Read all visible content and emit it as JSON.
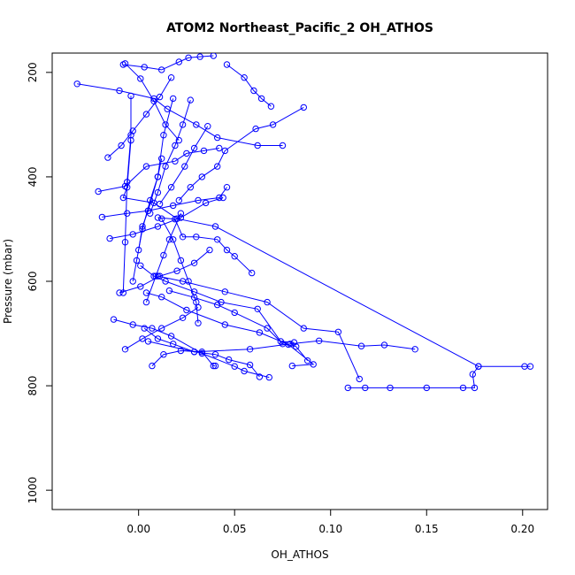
{
  "chart_data": {
    "type": "line",
    "title": "ATOM2 Northeast_Pacific_2 OH_ATHOS",
    "xlabel": "OH_ATHOS",
    "ylabel": "Pressure (mbar)",
    "xlim": [
      -0.045,
      0.213
    ],
    "ylim": [
      1037,
      163
    ],
    "y_reversed": true,
    "x_ticks": [
      0.0,
      0.05,
      0.1,
      0.15,
      0.2
    ],
    "x_tick_labels": [
      "0.00",
      "0.05",
      "0.10",
      "0.15",
      "0.20"
    ],
    "y_ticks": [
      200,
      400,
      600,
      800,
      1000
    ],
    "y_tick_labels": [
      "200",
      "400",
      "600",
      "800",
      "1000"
    ],
    "grid": false,
    "legend": "none",
    "marker": "open-circle",
    "color": "#0000ff",
    "series": [
      {
        "x": [
          0.109,
          0.118,
          0.131,
          0.15,
          0.169,
          0.175,
          0.174,
          0.177,
          0.201,
          0.204
        ],
        "y": [
          804,
          804,
          804,
          804,
          804,
          804,
          778,
          763,
          763,
          763
        ]
      },
      {
        "x": [
          0.144,
          0.128,
          0.116,
          0.094,
          0.079,
          0.058,
          0.029,
          0.005
        ],
        "y": [
          730,
          722,
          724,
          714,
          720,
          730,
          735,
          715
        ]
      },
      {
        "x": [
          0.177,
          0.04,
          0.02,
          0.008,
          -0.008,
          -0.006,
          -0.004
        ],
        "y": [
          763,
          495,
          480,
          450,
          440,
          420,
          330
        ]
      },
      {
        "x": [
          0.115,
          0.104,
          0.086,
          0.067,
          0.045,
          0.023,
          0.01
        ],
        "y": [
          787,
          697,
          690,
          640,
          620,
          600,
          590
        ]
      },
      {
        "x": [
          0.063,
          0.058,
          0.047,
          0.04,
          0.029,
          0.018,
          0.01,
          0.003
        ],
        "y": [
          783,
          760,
          750,
          740,
          735,
          720,
          710,
          690
        ]
      },
      {
        "x": [
          0.08,
          0.091,
          0.078,
          0.063,
          0.045,
          0.025,
          0.012,
          0.004
        ],
        "y": [
          762,
          759,
          721,
          698,
          683,
          655,
          630,
          622
        ]
      },
      {
        "x": [
          0.068,
          0.055,
          0.05,
          0.033,
          0.017,
          0.007,
          -0.003,
          -0.013
        ],
        "y": [
          784,
          772,
          763,
          738,
          705,
          690,
          683,
          673
        ]
      },
      {
        "x": [
          0.088,
          0.082,
          0.075,
          0.067,
          0.05,
          0.041,
          0.029,
          0.016
        ],
        "y": [
          752,
          725,
          720,
          690,
          660,
          645,
          631,
          618
        ]
      },
      {
        "x": [
          0.081,
          0.074,
          0.062,
          0.043,
          0.029,
          0.014,
          0.008,
          0.001
        ],
        "y": [
          717,
          715,
          653,
          640,
          620,
          600,
          590,
          570
        ]
      },
      {
        "x": [
          0.059,
          0.05,
          0.046,
          0.041,
          0.03,
          0.023,
          0.019,
          0.01
        ],
        "y": [
          584,
          552,
          540,
          520,
          515,
          515,
          481,
          478
        ]
      },
      {
        "x": [
          0.086,
          0.07,
          0.061,
          0.045,
          0.041,
          0.033,
          0.027,
          0.021
        ],
        "y": [
          267,
          300,
          308,
          350,
          380,
          400,
          420,
          445
        ]
      },
      {
        "x": [
          -0.032,
          -0.01,
          0.008,
          0.015,
          0.03,
          0.041,
          0.062,
          0.075
        ],
        "y": [
          222,
          235,
          250,
          270,
          300,
          325,
          340,
          340
        ]
      },
      {
        "x": [
          -0.021,
          -0.007,
          0.004,
          0.019,
          0.025,
          0.034,
          0.042
        ],
        "y": [
          428,
          418,
          380,
          370,
          355,
          350,
          345
        ]
      },
      {
        "x": [
          -0.015,
          -0.003,
          0.01,
          0.022,
          0.035,
          0.044
        ],
        "y": [
          518,
          510,
          495,
          478,
          450,
          440
        ]
      },
      {
        "x": [
          -0.019,
          -0.006,
          0.005,
          0.018,
          0.031,
          0.042,
          0.046
        ],
        "y": [
          477,
          470,
          465,
          455,
          445,
          440,
          420
        ]
      },
      {
        "x": [
          -0.01,
          0.001,
          0.011,
          0.02,
          0.029,
          0.037
        ],
        "y": [
          622,
          610,
          590,
          580,
          565,
          540
        ]
      },
      {
        "x": [
          -0.007,
          0.002,
          0.012,
          0.023,
          0.031
        ],
        "y": [
          730,
          710,
          690,
          670,
          650
        ]
      },
      {
        "x": [
          0.007,
          0.013,
          0.022,
          0.033,
          0.039,
          0.04
        ],
        "y": [
          762,
          740,
          733,
          735,
          762,
          762
        ]
      },
      {
        "x": [
          -0.007,
          0.001,
          0.008,
          0.014,
          0.021
        ],
        "y": [
          183,
          212,
          255,
          300,
          330
        ]
      },
      {
        "x": [
          -0.008,
          0.003,
          0.012,
          0.021,
          0.026,
          0.032,
          0.039
        ],
        "y": [
          185,
          190,
          195,
          180,
          172,
          170,
          168
        ]
      },
      {
        "x": [
          0.046,
          0.055,
          0.06,
          0.064,
          0.069
        ],
        "y": [
          185,
          210,
          235,
          250,
          265
        ]
      },
      {
        "x": [
          -0.004,
          -0.004,
          -0.006,
          -0.007,
          -0.008
        ],
        "y": [
          245,
          320,
          410,
          525,
          622
        ]
      },
      {
        "x": [
          0.018,
          0.013,
          0.01,
          0.005,
          0.002,
          0.0
        ],
        "y": [
          250,
          320,
          400,
          465,
          495,
          540
        ]
      },
      {
        "x": [
          0.027,
          0.023,
          0.019,
          0.014,
          0.01,
          0.006
        ],
        "y": [
          253,
          300,
          340,
          380,
          430,
          470
        ]
      },
      {
        "x": [
          -0.016,
          -0.009,
          -0.003,
          0.004,
          0.011,
          0.017
        ],
        "y": [
          363,
          340,
          312,
          280,
          247,
          210
        ]
      },
      {
        "x": [
          0.012,
          0.01,
          0.006,
          0.002,
          -0.001,
          -0.003
        ],
        "y": [
          365,
          400,
          445,
          500,
          560,
          600
        ]
      },
      {
        "x": [
          0.022,
          0.016,
          0.013,
          0.009,
          0.004
        ],
        "y": [
          470,
          520,
          550,
          590,
          640
        ]
      },
      {
        "x": [
          0.012,
          0.018,
          0.022,
          0.026,
          0.03,
          0.031
        ],
        "y": [
          480,
          520,
          560,
          600,
          640,
          680
        ]
      },
      {
        "x": [
          0.036,
          0.029,
          0.024,
          0.017,
          0.011
        ],
        "y": [
          303,
          345,
          380,
          420,
          452
        ]
      }
    ]
  }
}
